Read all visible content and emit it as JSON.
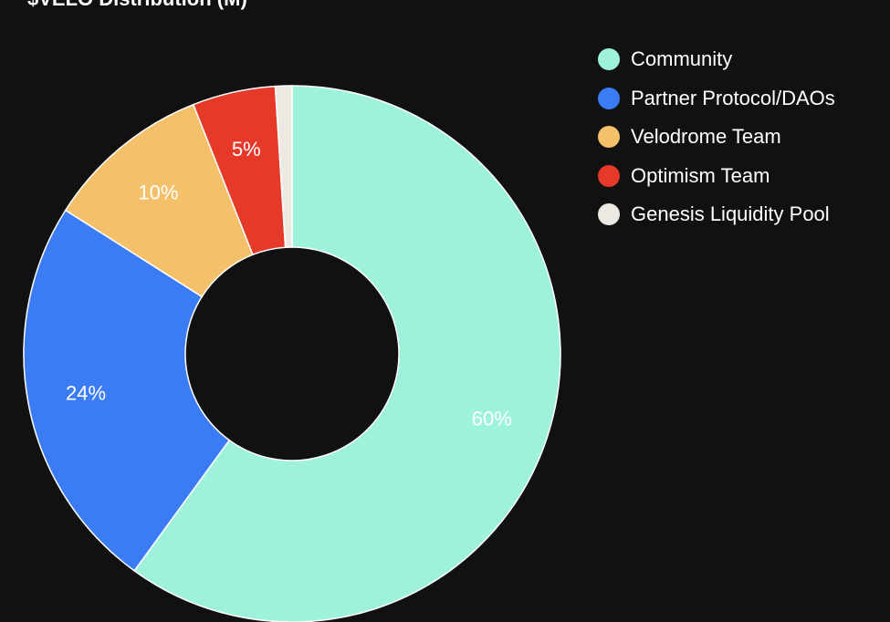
{
  "chart_data": {
    "type": "pie",
    "title": "$VELO Distribution (M)",
    "categories": [
      "Community",
      "Partner Protocol/DAOs",
      "Velodrome Team",
      "Optimism Team",
      "Genesis Liquidity Pool"
    ],
    "values": [
      60,
      24,
      10,
      5,
      1
    ],
    "value_labels": [
      "60%",
      "24%",
      "10%",
      "5%",
      ""
    ],
    "colors": [
      "#9ef2dc",
      "#3b7cf4",
      "#f4c06a",
      "#e5392a",
      "#ede8e1"
    ],
    "legend_position": "top-right",
    "donut": true
  }
}
